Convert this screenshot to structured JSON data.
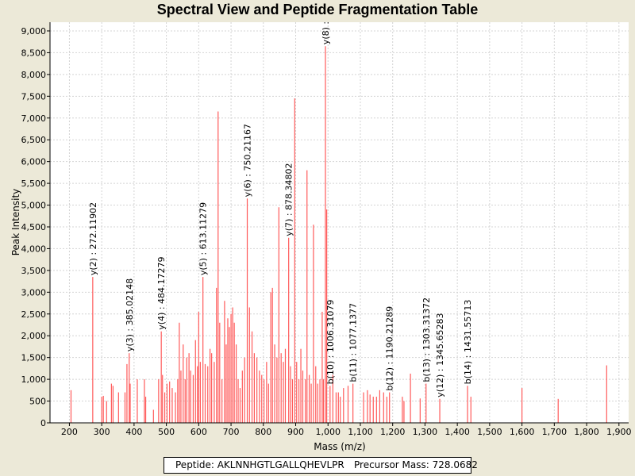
{
  "chart_data": {
    "type": "bar",
    "title": "Spectral View and Peptide Fragmentation Table",
    "xlabel": "Mass (m/z)",
    "ylabel": "Peak Intensity",
    "xlim": [
      140,
      1930
    ],
    "ylim": [
      0,
      9200
    ],
    "grid": true,
    "x_ticks": [
      200,
      300,
      400,
      500,
      600,
      700,
      800,
      900,
      1000,
      1100,
      1200,
      1300,
      1400,
      1500,
      1600,
      1700,
      1800,
      1900
    ],
    "x_tick_labels": [
      "200",
      "300",
      "400",
      "500",
      "600",
      "700",
      "800",
      "900",
      "1,000",
      "1,100",
      "1,200",
      "1,300",
      "1,400",
      "1,500",
      "1,600",
      "1,700",
      "1,800",
      "1,900"
    ],
    "y_ticks": [
      0,
      500,
      1000,
      1500,
      2000,
      2500,
      3000,
      3500,
      4000,
      4500,
      5000,
      5500,
      6000,
      6500,
      7000,
      7500,
      8000,
      8500,
      9000
    ],
    "y_tick_labels": [
      "0",
      "500",
      "1,000",
      "1,500",
      "2,000",
      "2,500",
      "3,000",
      "3,500",
      "4,000",
      "4,500",
      "5,000",
      "5,500",
      "6,000",
      "6,500",
      "7,000",
      "7,500",
      "8,000",
      "8,500",
      "9,000"
    ],
    "peaks": [
      {
        "mz": 205,
        "intensity": 750
      },
      {
        "mz": 272.2,
        "intensity": 3350
      },
      {
        "mz": 300,
        "intensity": 600
      },
      {
        "mz": 305,
        "intensity": 620
      },
      {
        "mz": 315,
        "intensity": 500
      },
      {
        "mz": 330,
        "intensity": 900
      },
      {
        "mz": 335,
        "intensity": 850
      },
      {
        "mz": 352,
        "intensity": 700
      },
      {
        "mz": 372,
        "intensity": 700
      },
      {
        "mz": 378,
        "intensity": 1350
      },
      {
        "mz": 385,
        "intensity": 1600
      },
      {
        "mz": 388,
        "intensity": 900
      },
      {
        "mz": 410,
        "intensity": 1000
      },
      {
        "mz": 432,
        "intensity": 1000
      },
      {
        "mz": 436,
        "intensity": 600
      },
      {
        "mz": 460,
        "intensity": 300
      },
      {
        "mz": 476,
        "intensity": 1000
      },
      {
        "mz": 484.2,
        "intensity": 2100
      },
      {
        "mz": 488,
        "intensity": 1100
      },
      {
        "mz": 495,
        "intensity": 700
      },
      {
        "mz": 502,
        "intensity": 900
      },
      {
        "mz": 510,
        "intensity": 950
      },
      {
        "mz": 518,
        "intensity": 800
      },
      {
        "mz": 528,
        "intensity": 700
      },
      {
        "mz": 535,
        "intensity": 1000
      },
      {
        "mz": 540,
        "intensity": 2300
      },
      {
        "mz": 545,
        "intensity": 1200
      },
      {
        "mz": 552,
        "intensity": 1800
      },
      {
        "mz": 558,
        "intensity": 1000
      },
      {
        "mz": 563,
        "intensity": 1500
      },
      {
        "mz": 570,
        "intensity": 1600
      },
      {
        "mz": 575,
        "intensity": 1200
      },
      {
        "mz": 583,
        "intensity": 1100
      },
      {
        "mz": 590,
        "intensity": 1900
      },
      {
        "mz": 596,
        "intensity": 1300
      },
      {
        "mz": 600,
        "intensity": 2550
      },
      {
        "mz": 605,
        "intensity": 1400
      },
      {
        "mz": 613.1,
        "intensity": 3350
      },
      {
        "mz": 620,
        "intensity": 1350
      },
      {
        "mz": 628,
        "intensity": 1300
      },
      {
        "mz": 635,
        "intensity": 1700
      },
      {
        "mz": 640,
        "intensity": 1600
      },
      {
        "mz": 648,
        "intensity": 1400
      },
      {
        "mz": 655,
        "intensity": 3100
      },
      {
        "mz": 660,
        "intensity": 7150
      },
      {
        "mz": 665,
        "intensity": 2300
      },
      {
        "mz": 672,
        "intensity": 1000
      },
      {
        "mz": 680,
        "intensity": 2800
      },
      {
        "mz": 685,
        "intensity": 1800
      },
      {
        "mz": 690,
        "intensity": 2400
      },
      {
        "mz": 695,
        "intensity": 2200
      },
      {
        "mz": 700,
        "intensity": 2500
      },
      {
        "mz": 705,
        "intensity": 2650
      },
      {
        "mz": 710,
        "intensity": 2300
      },
      {
        "mz": 716,
        "intensity": 1800
      },
      {
        "mz": 722,
        "intensity": 1000
      },
      {
        "mz": 728,
        "intensity": 800
      },
      {
        "mz": 735,
        "intensity": 1200
      },
      {
        "mz": 742,
        "intensity": 1500
      },
      {
        "mz": 750.2,
        "intensity": 5150
      },
      {
        "mz": 757,
        "intensity": 2650
      },
      {
        "mz": 765,
        "intensity": 2100
      },
      {
        "mz": 772,
        "intensity": 1600
      },
      {
        "mz": 780,
        "intensity": 1500
      },
      {
        "mz": 788,
        "intensity": 1200
      },
      {
        "mz": 795,
        "intensity": 1100
      },
      {
        "mz": 802,
        "intensity": 1000
      },
      {
        "mz": 810,
        "intensity": 1400
      },
      {
        "mz": 816,
        "intensity": 900
      },
      {
        "mz": 823,
        "intensity": 3000
      },
      {
        "mz": 828,
        "intensity": 3100
      },
      {
        "mz": 835,
        "intensity": 1800
      },
      {
        "mz": 842,
        "intensity": 1500
      },
      {
        "mz": 848,
        "intensity": 4950
      },
      {
        "mz": 855,
        "intensity": 1600
      },
      {
        "mz": 862,
        "intensity": 1400
      },
      {
        "mz": 868,
        "intensity": 1700
      },
      {
        "mz": 878.3,
        "intensity": 4250
      },
      {
        "mz": 884,
        "intensity": 1300
      },
      {
        "mz": 890,
        "intensity": 1000
      },
      {
        "mz": 897,
        "intensity": 7450
      },
      {
        "mz": 903,
        "intensity": 1400
      },
      {
        "mz": 910,
        "intensity": 1000
      },
      {
        "mz": 916,
        "intensity": 1700
      },
      {
        "mz": 922,
        "intensity": 1200
      },
      {
        "mz": 930,
        "intensity": 1000
      },
      {
        "mz": 935,
        "intensity": 5800
      },
      {
        "mz": 942,
        "intensity": 1100
      },
      {
        "mz": 948,
        "intensity": 900
      },
      {
        "mz": 955,
        "intensity": 4550
      },
      {
        "mz": 962,
        "intensity": 1300
      },
      {
        "mz": 968,
        "intensity": 900
      },
      {
        "mz": 975,
        "intensity": 1000
      },
      {
        "mz": 982,
        "intensity": 2550
      },
      {
        "mz": 986,
        "intensity": 1000
      },
      {
        "mz": 992,
        "intensity": 8650
      },
      {
        "mz": 996,
        "intensity": 4900
      },
      {
        "mz": 1006.3,
        "intensity": 850
      },
      {
        "mz": 1015,
        "intensity": 1100
      },
      {
        "mz": 1025,
        "intensity": 700
      },
      {
        "mz": 1032,
        "intensity": 700
      },
      {
        "mz": 1038,
        "intensity": 600
      },
      {
        "mz": 1048,
        "intensity": 800
      },
      {
        "mz": 1062,
        "intensity": 850
      },
      {
        "mz": 1077.1,
        "intensity": 900
      },
      {
        "mz": 1110,
        "intensity": 700
      },
      {
        "mz": 1122,
        "intensity": 750
      },
      {
        "mz": 1130,
        "intensity": 650
      },
      {
        "mz": 1140,
        "intensity": 600
      },
      {
        "mz": 1150,
        "intensity": 600
      },
      {
        "mz": 1160,
        "intensity": 750
      },
      {
        "mz": 1172,
        "intensity": 700
      },
      {
        "mz": 1182,
        "intensity": 600
      },
      {
        "mz": 1190.2,
        "intensity": 700
      },
      {
        "mz": 1230,
        "intensity": 600
      },
      {
        "mz": 1235,
        "intensity": 500
      },
      {
        "mz": 1255,
        "intensity": 1130
      },
      {
        "mz": 1285,
        "intensity": 560
      },
      {
        "mz": 1303.3,
        "intensity": 900
      },
      {
        "mz": 1345.7,
        "intensity": 550
      },
      {
        "mz": 1431.6,
        "intensity": 850
      },
      {
        "mz": 1442,
        "intensity": 600
      },
      {
        "mz": 1600,
        "intensity": 800
      },
      {
        "mz": 1712,
        "intensity": 550
      },
      {
        "mz": 1862,
        "intensity": 1320
      }
    ],
    "annotations": [
      {
        "label": "y(2) : 272.11902",
        "mz": 272.2,
        "intensity": 3350
      },
      {
        "label": "y(3) : 385.02148",
        "mz": 385,
        "intensity": 1600
      },
      {
        "label": "y(4) : 484.17279",
        "mz": 484.2,
        "intensity": 2100
      },
      {
        "label": "y(5) : 613.11279",
        "mz": 613.1,
        "intensity": 3350
      },
      {
        "label": "y(6) : 750.21167",
        "mz": 750.2,
        "intensity": 5150
      },
      {
        "label": "y(7) : 878.34802",
        "mz": 878.3,
        "intensity": 4250
      },
      {
        "label": "y(8) :",
        "mz": 992,
        "intensity": 8650
      },
      {
        "label": "b(10) : 1006.31079",
        "mz": 1006.3,
        "intensity": 850
      },
      {
        "label": "b(11) : 1077.1377",
        "mz": 1077.1,
        "intensity": 900
      },
      {
        "label": "b(12) : 1190.21289",
        "mz": 1190.2,
        "intensity": 700
      },
      {
        "label": "b(13) : 1303.31372",
        "mz": 1303.3,
        "intensity": 900
      },
      {
        "label": "y(12) : 1345.65283",
        "mz": 1345.7,
        "intensity": 550
      },
      {
        "label": "b(14) : 1431.55713",
        "mz": 1431.6,
        "intensity": 850
      }
    ]
  },
  "footer": {
    "peptide": "Peptide: AKLNNHGTLGALLQHEVLPR",
    "precursor": "Precursor Mass: 728.0682"
  },
  "colors": {
    "peak": "#ff5a5a",
    "grid": "#d4d4d4",
    "plot_bg": "#ffffff",
    "window_bg": "#ece9d8"
  }
}
